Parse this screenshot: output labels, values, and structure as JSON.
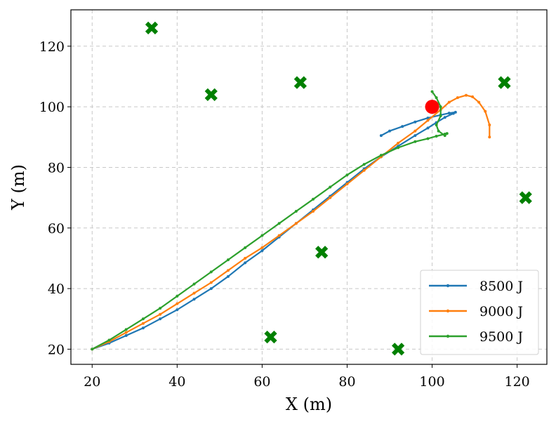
{
  "chart_data": {
    "type": "line",
    "title": "",
    "xlabel": "X (m)",
    "ylabel": "Y (m)",
    "xlim": [
      15,
      127
    ],
    "ylim": [
      15,
      132
    ],
    "xticks": [
      "20",
      "40",
      "60",
      "80",
      "100",
      "120"
    ],
    "yticks": [
      "20",
      "40",
      "60",
      "80",
      "100",
      "120"
    ],
    "grid": true,
    "legend_position": "lower-right",
    "series": [
      {
        "name": "8500 J",
        "color": "#1f77b4",
        "x": [
          20,
          24,
          28,
          32,
          36,
          40,
          44,
          48,
          52,
          56,
          60,
          64,
          68,
          72,
          76,
          80,
          84,
          88,
          92,
          96,
          99,
          101,
          103,
          105,
          105.5,
          104,
          102,
          99,
          96,
          93,
          90,
          88
        ],
        "y": [
          20,
          22,
          24.5,
          27,
          30,
          33,
          36.5,
          40,
          44,
          48.5,
          52.5,
          57,
          61.5,
          66,
          70.5,
          75,
          79.5,
          83.5,
          87,
          90.5,
          93,
          94.8,
          96.5,
          97.8,
          98.2,
          97.9,
          97.3,
          96.3,
          95,
          93.5,
          92,
          90.5
        ]
      },
      {
        "name": "9000 J",
        "color": "#ff7f0e",
        "x": [
          20,
          24,
          28,
          32,
          36,
          40,
          44,
          48,
          52,
          56,
          60,
          64,
          68,
          72,
          76,
          80,
          84,
          88,
          92,
          96,
          99,
          102,
          104,
          106,
          108,
          109.5,
          111,
          112.5,
          113.5,
          113.5
        ],
        "y": [
          20,
          22.5,
          25.5,
          28.5,
          31.5,
          35,
          38.5,
          42,
          46,
          50,
          53.5,
          57.5,
          61.5,
          65.5,
          70,
          74.5,
          79,
          83.5,
          88,
          92,
          95.5,
          99,
          101.5,
          103,
          103.8,
          103.3,
          101.5,
          98.5,
          94,
          90
        ]
      },
      {
        "name": "9500 J",
        "color": "#2ca02c",
        "x": [
          20,
          24,
          28,
          32,
          36,
          40,
          44,
          48,
          52,
          56,
          60,
          64,
          68,
          72,
          76,
          80,
          84,
          88,
          92,
          96,
          99,
          101,
          103,
          103.5,
          103,
          101.5,
          101,
          102,
          102,
          101,
          100
        ],
        "y": [
          20,
          23,
          26.5,
          30,
          33.5,
          37.5,
          41.5,
          45.5,
          49.5,
          53.5,
          57.5,
          61.5,
          65.5,
          69.5,
          73.5,
          77.5,
          81,
          84,
          86.5,
          88.5,
          89.5,
          90.3,
          91,
          91.2,
          90.5,
          92,
          94,
          97,
          100,
          103,
          105
        ]
      }
    ],
    "markers": {
      "obstacles_color": "#008000",
      "obstacles": [
        {
          "x": 34,
          "y": 126
        },
        {
          "x": 48,
          "y": 104
        },
        {
          "x": 69,
          "y": 108
        },
        {
          "x": 117,
          "y": 108
        },
        {
          "x": 122,
          "y": 70
        },
        {
          "x": 74,
          "y": 52
        },
        {
          "x": 62,
          "y": 24
        },
        {
          "x": 92,
          "y": 20
        }
      ],
      "target_color": "#ff0000",
      "target": {
        "x": 100,
        "y": 100
      }
    }
  }
}
